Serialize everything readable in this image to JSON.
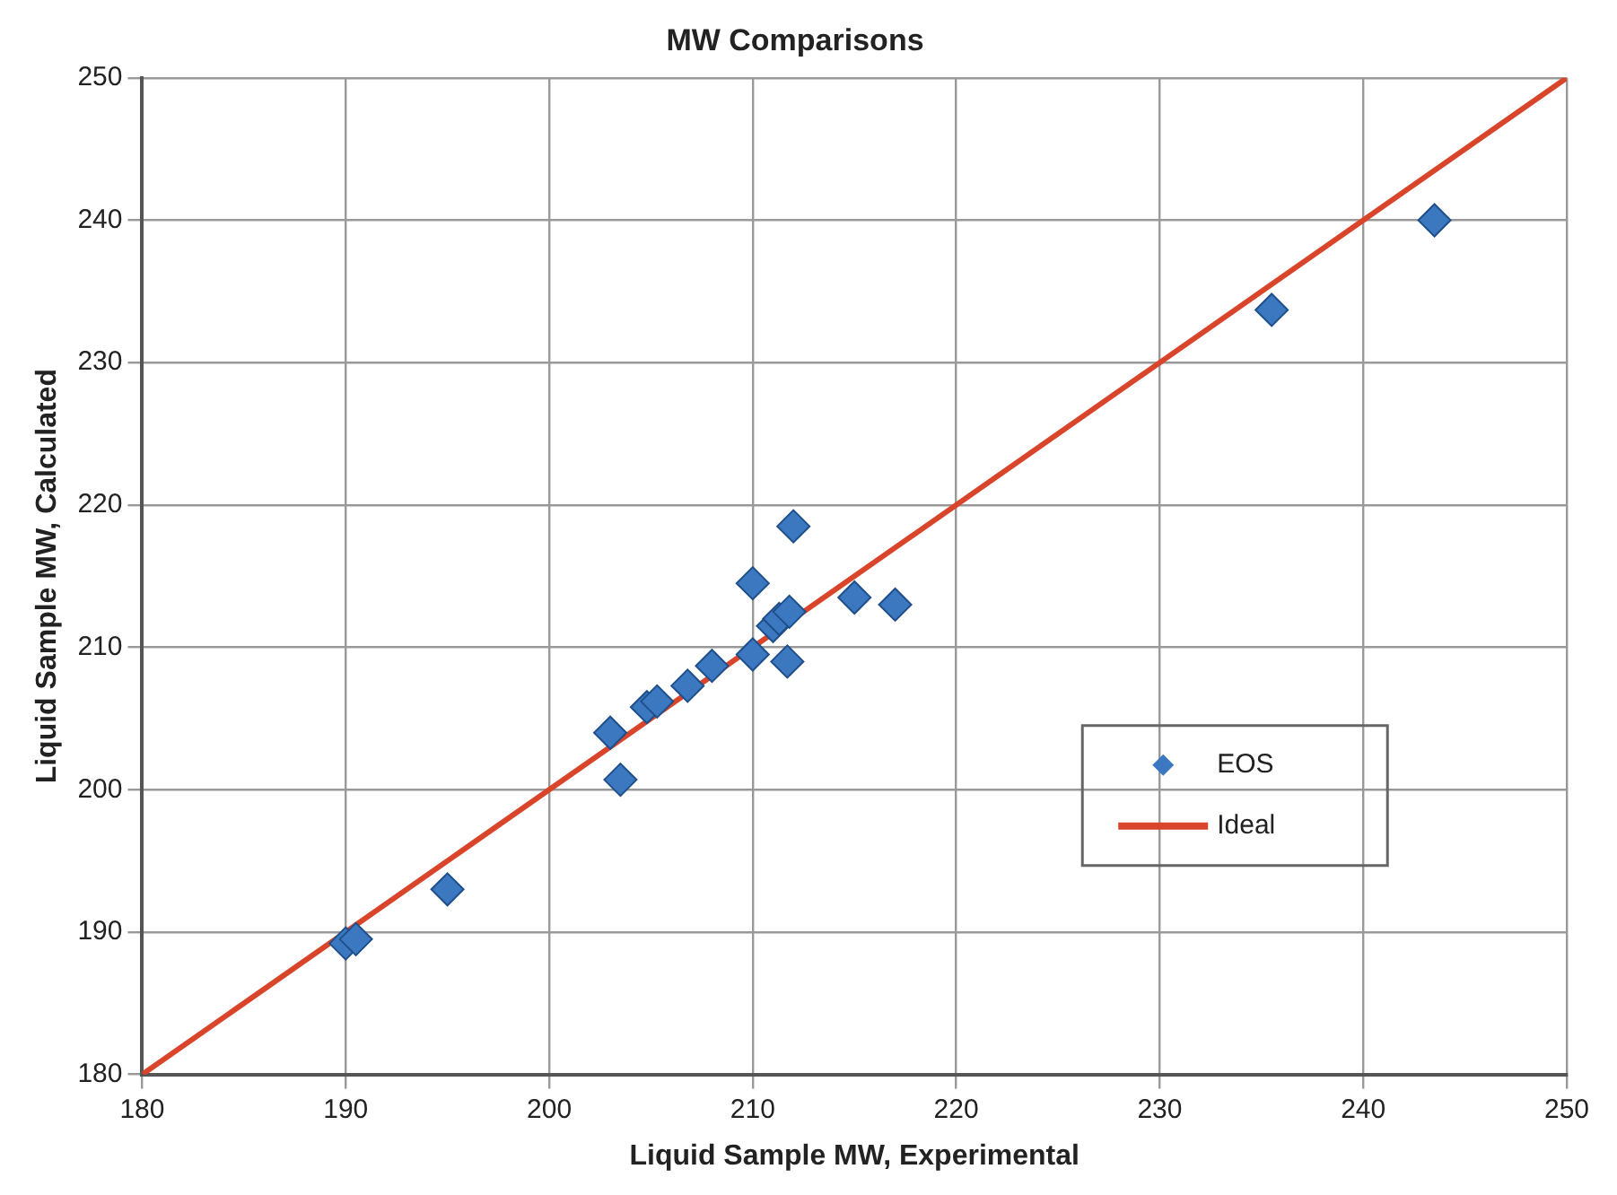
{
  "chart_data": {
    "type": "scatter",
    "title": "MW Comparisons",
    "xlabel": "Liquid Sample MW, Experimental",
    "ylabel": "Liquid Sample MW, Calculated",
    "xlim": [
      180,
      250
    ],
    "xticks": [
      180,
      190,
      200,
      210,
      220,
      230,
      240,
      250
    ],
    "ylim": [
      180,
      250
    ],
    "yticks": [
      180,
      190,
      200,
      210,
      220,
      230,
      240,
      250
    ],
    "grid": true,
    "legend": "right",
    "marker": "diamond",
    "series": [
      {
        "name": "EOS",
        "color": "#3b78c0",
        "x": [
          190,
          190.5,
          195,
          203,
          203.5,
          204.8,
          205.3,
          206.8,
          208,
          210,
          210,
          211,
          211.3,
          211.8,
          211.7,
          212,
          215,
          217,
          235.5,
          243.5
        ],
        "values": [
          189.2,
          189.5,
          193,
          204,
          200.7,
          205.8,
          206.2,
          207.3,
          208.7,
          209.5,
          214.5,
          211.5,
          212,
          212.5,
          209,
          218.5,
          213.5,
          213,
          233.7,
          240
        ]
      },
      {
        "name": "Ideal",
        "type": "line",
        "color": "#d9452b",
        "line_style": "solid",
        "marker": "none",
        "x": [
          180,
          250
        ],
        "values": [
          180,
          250
        ]
      }
    ]
  }
}
